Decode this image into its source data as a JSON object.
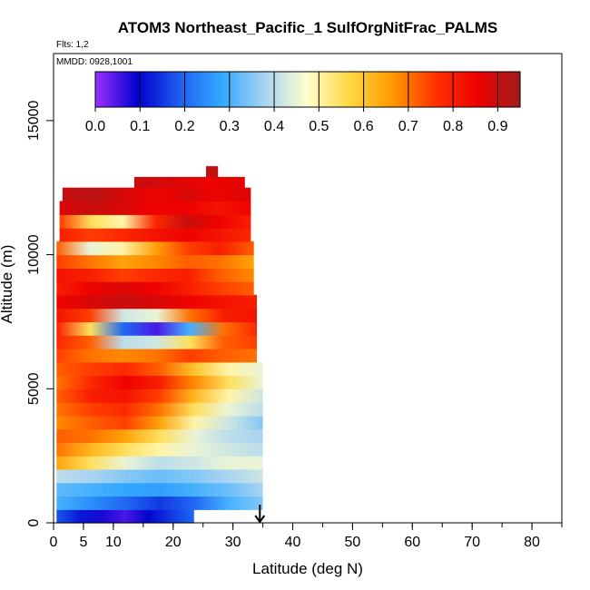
{
  "chart_data": {
    "type": "heatmap",
    "title": "ATOM3 Northeast_Pacific_1 SulfOrgNitFrac_PALMS",
    "flights_label": "Flts: 1,2",
    "date_label": "MMDD: 0928,1001",
    "xlabel": "Latitude (deg N)",
    "ylabel": "Altitude (m)",
    "xlim": [
      0,
      85
    ],
    "ylim": [
      0,
      17500
    ],
    "x_ticks": [
      0,
      5,
      10,
      20,
      30,
      40,
      50,
      60,
      70,
      80
    ],
    "y_ticks": [
      0,
      5000,
      10000,
      15000
    ],
    "colorbar": {
      "range": [
        0,
        0.95
      ],
      "ticks": [
        "0.0",
        "0.1",
        "0.2",
        "0.3",
        "0.4",
        "0.5",
        "0.6",
        "0.7",
        "0.8",
        "0.9"
      ],
      "colors": [
        "#9b30ff",
        "#0000cd",
        "#1e60f0",
        "#33aaff",
        "#aad4f2",
        "#ffffcc",
        "#ffd740",
        "#ff9900",
        "#ff3300",
        "#ee0000",
        "#a01c1c"
      ]
    },
    "arrow_latitude": 34.5,
    "bands": [
      {
        "alt": [
          0,
          500
        ],
        "x": [
          0.5,
          23.5
        ],
        "v": [
          0.18,
          0.12,
          0.08,
          0.05,
          0.1,
          0.15,
          0.2
        ]
      },
      {
        "alt": [
          500,
          1000
        ],
        "x": [
          0.5,
          35
        ],
        "v": [
          0.3,
          0.25,
          0.2,
          0.15,
          0.2,
          0.3,
          0.35
        ]
      },
      {
        "alt": [
          1000,
          1500
        ],
        "x": [
          0.5,
          35
        ],
        "v": [
          0.32,
          0.3,
          0.28,
          0.27,
          0.3,
          0.33,
          0.38
        ]
      },
      {
        "alt": [
          1500,
          2000
        ],
        "x": [
          0.5,
          35
        ],
        "v": [
          0.4,
          0.38,
          0.35,
          0.33,
          0.35,
          0.38,
          0.42
        ]
      },
      {
        "alt": [
          2000,
          2500
        ],
        "x": [
          0.5,
          35
        ],
        "v": [
          0.65,
          0.55,
          0.45,
          0.4,
          0.42,
          0.45,
          0.45
        ]
      },
      {
        "alt": [
          2500,
          3000
        ],
        "x": [
          0.5,
          35
        ],
        "v": [
          0.7,
          0.62,
          0.55,
          0.5,
          0.45,
          0.42,
          0.4
        ]
      },
      {
        "alt": [
          3000,
          3500
        ],
        "x": [
          0.5,
          35
        ],
        "v": [
          0.72,
          0.7,
          0.65,
          0.55,
          0.45,
          0.4,
          0.38
        ]
      },
      {
        "alt": [
          3500,
          4000
        ],
        "x": [
          0.5,
          35
        ],
        "v": [
          0.68,
          0.72,
          0.75,
          0.65,
          0.5,
          0.42,
          0.35
        ]
      },
      {
        "alt": [
          4000,
          4500
        ],
        "x": [
          0.5,
          35
        ],
        "v": [
          0.7,
          0.75,
          0.78,
          0.7,
          0.55,
          0.45,
          0.4
        ]
      },
      {
        "alt": [
          4500,
          5000
        ],
        "x": [
          0.5,
          35
        ],
        "v": [
          0.72,
          0.8,
          0.82,
          0.75,
          0.62,
          0.5,
          0.42
        ]
      },
      {
        "alt": [
          5000,
          5500
        ],
        "x": [
          0.5,
          35
        ],
        "v": [
          0.7,
          0.78,
          0.85,
          0.8,
          0.68,
          0.55,
          0.45
        ]
      },
      {
        "alt": [
          5500,
          6000
        ],
        "x": [
          0.5,
          35
        ],
        "v": [
          0.72,
          0.75,
          0.78,
          0.72,
          0.6,
          0.5,
          0.45
        ]
      },
      {
        "alt": [
          6000,
          6500
        ],
        "x": [
          0.5,
          34
        ],
        "v": [
          0.75,
          0.7,
          0.68,
          0.7,
          0.75,
          0.72,
          0.7
        ]
      },
      {
        "alt": [
          6500,
          7000
        ],
        "x": [
          0.5,
          34
        ],
        "v": [
          0.78,
          0.72,
          0.4,
          0.42,
          0.55,
          0.72,
          0.75
        ]
      },
      {
        "alt": [
          7000,
          7500
        ],
        "x": [
          0.5,
          34
        ],
        "v": [
          0.8,
          0.55,
          0.2,
          0.05,
          0.3,
          0.7,
          0.78
        ]
      },
      {
        "alt": [
          7500,
          8000
        ],
        "x": [
          0.5,
          34
        ],
        "v": [
          0.82,
          0.75,
          0.42,
          0.45,
          0.7,
          0.8,
          0.82
        ]
      },
      {
        "alt": [
          8000,
          8500
        ],
        "x": [
          0.5,
          34
        ],
        "v": [
          0.85,
          0.88,
          0.9,
          0.88,
          0.85,
          0.82,
          0.8
        ]
      },
      {
        "alt": [
          8500,
          9000
        ],
        "x": [
          0.5,
          33.5
        ],
        "v": [
          0.8,
          0.85,
          0.88,
          0.85,
          0.8,
          0.75,
          0.72
        ]
      },
      {
        "alt": [
          9000,
          9500
        ],
        "x": [
          0.5,
          33.5
        ],
        "v": [
          0.82,
          0.8,
          0.75,
          0.78,
          0.8,
          0.72,
          0.68
        ]
      },
      {
        "alt": [
          9500,
          10000
        ],
        "x": [
          0.5,
          33.5
        ],
        "v": [
          0.75,
          0.7,
          0.65,
          0.68,
          0.72,
          0.7,
          0.65
        ]
      },
      {
        "alt": [
          10000,
          10500
        ],
        "x": [
          0.5,
          33.5
        ],
        "v": [
          0.72,
          0.45,
          0.5,
          0.65,
          0.75,
          0.8,
          0.72
        ]
      },
      {
        "alt": [
          10500,
          11000
        ],
        "x": [
          1,
          33
        ],
        "v": [
          0.8,
          0.75,
          0.78,
          0.82,
          0.85,
          0.82,
          0.78
        ]
      },
      {
        "alt": [
          11000,
          11500
        ],
        "x": [
          1,
          33
        ],
        "v": [
          0.75,
          0.55,
          0.5,
          0.78,
          0.9,
          0.85,
          0.8
        ]
      },
      {
        "alt": [
          11500,
          12000
        ],
        "x": [
          1,
          33
        ],
        "v": [
          0.88,
          0.9,
          0.88,
          0.85,
          0.85,
          0.82,
          0.85
        ]
      },
      {
        "alt": [
          12000,
          12500
        ],
        "x": [
          1.5,
          33
        ],
        "v": [
          0.9,
          0.92,
          0.88,
          0.85,
          0.88,
          0.85,
          0.88
        ]
      },
      {
        "alt": [
          12500,
          12900
        ],
        "x": [
          13.5,
          32
        ],
        "v": [
          0.9,
          0.88,
          0.85,
          0.87
        ]
      },
      {
        "alt": [
          12900,
          13300
        ],
        "x": [
          25.5,
          27.5
        ],
        "v": [
          0.9,
          0.92
        ]
      }
    ]
  }
}
